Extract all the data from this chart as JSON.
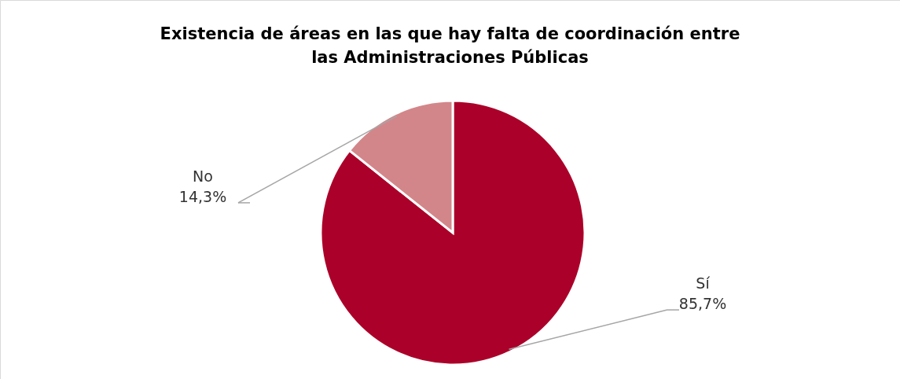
{
  "chart_data": {
    "type": "pie",
    "title": "Existencia de áreas en las que hay falta de coordinación entre\nlas Administraciones Públicas",
    "categories": [
      "Sí",
      "No"
    ],
    "values": [
      85.7,
      14.3
    ],
    "colors": [
      "#ab0029",
      "#d3868a"
    ],
    "value_labels": [
      "85,7%",
      "14,3%"
    ]
  }
}
